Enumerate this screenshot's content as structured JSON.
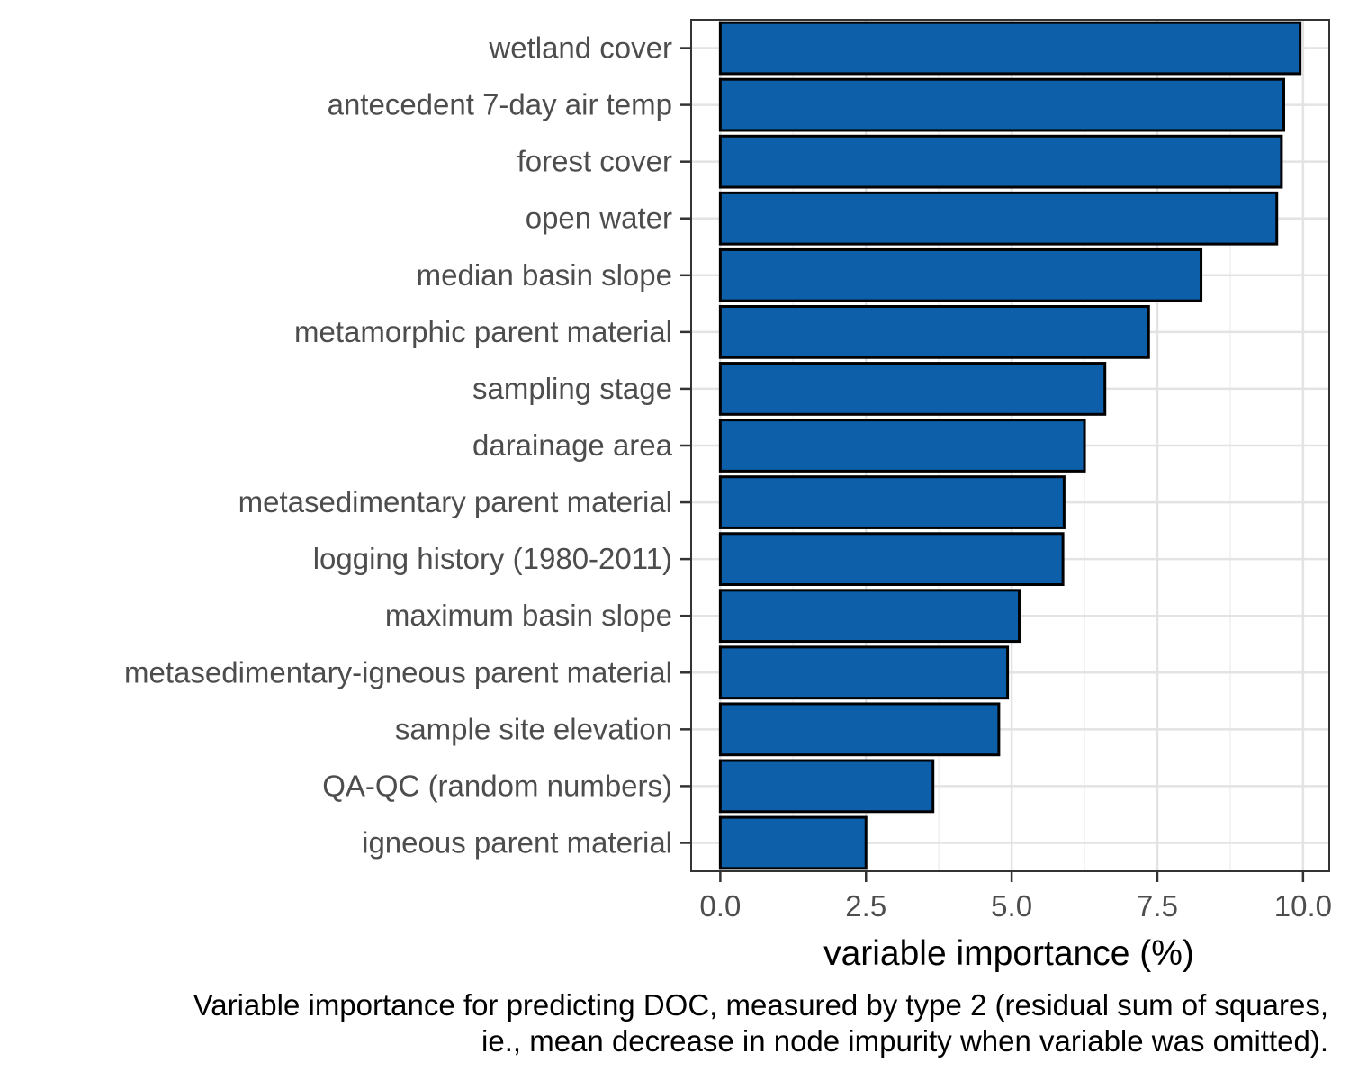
{
  "chart_data": {
    "type": "bar",
    "orientation": "horizontal",
    "categories": [
      "wetland cover",
      "antecedent 7-day air temp",
      "forest cover",
      "open water",
      "median basin slope",
      "metamorphic parent material",
      "sampling stage",
      "darainage area",
      "metasedimentary parent material",
      "logging history (1980-2011)",
      "maximum basin slope",
      "metasedimentary-igneous parent material",
      "sample site elevation",
      "QA-QC (random numbers)",
      "igneous parent material"
    ],
    "values": [
      9.95,
      9.67,
      9.63,
      9.55,
      8.25,
      7.35,
      6.6,
      6.25,
      5.9,
      5.88,
      5.13,
      4.93,
      4.78,
      3.65,
      2.5
    ],
    "xlabel": "variable importance (%)",
    "ylabel": "",
    "xlim": [
      -0.5,
      10.45
    ],
    "xticks": [
      "0.0",
      "2.5",
      "5.0",
      "7.5",
      "10.0"
    ],
    "xtick_values": [
      0,
      2.5,
      5,
      7.5,
      10
    ],
    "grid": true,
    "bar_color": "#0c5fa8",
    "bar_edge_color": "#000000"
  },
  "caption": {
    "line1": "Variable importance for predicting DOC, measured by type 2 (residual sum of squares,",
    "line2": "ie., mean decrease in node impurity when variable was omitted)."
  }
}
